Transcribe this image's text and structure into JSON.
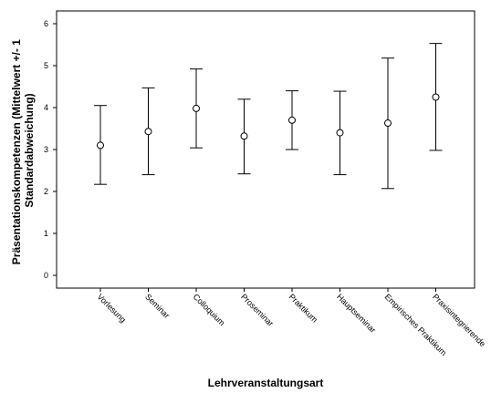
{
  "chart_data": {
    "type": "errorbar",
    "xlabel": "Lehrveranstaltungsart",
    "ylabel_lines": [
      "Präsentationskompetenzen (Mittelwert +/- 1",
      "Standardabweichung)"
    ],
    "categories": [
      "Vorlesung",
      "Seminar",
      "Colloquium",
      "Proseminar",
      "Praktikum",
      "Hauptseminar",
      "Empirisches Praktikum",
      "Praxisintegrierende"
    ],
    "mean": [
      3.1,
      3.43,
      3.98,
      3.32,
      3.7,
      3.4,
      3.63,
      4.25
    ],
    "lower": [
      2.17,
      2.4,
      3.04,
      2.42,
      3.0,
      2.4,
      2.07,
      2.98
    ],
    "upper": [
      4.05,
      4.47,
      4.92,
      4.2,
      4.4,
      4.39,
      5.18,
      5.53
    ],
    "ylim": [
      0,
      6
    ],
    "yticks": [
      "0",
      "1",
      "2",
      "3",
      "4",
      "5",
      "6"
    ],
    "grid": false,
    "legend": "none"
  }
}
